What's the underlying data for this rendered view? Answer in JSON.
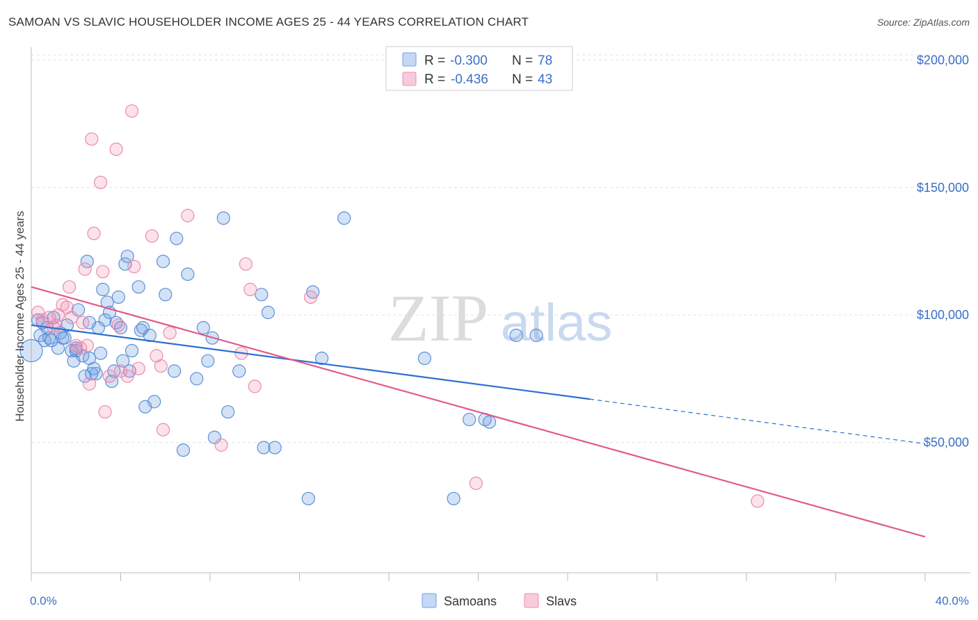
{
  "title": "SAMOAN VS SLAVIC HOUSEHOLDER INCOME AGES 25 - 44 YEARS CORRELATION CHART",
  "source": "Source: ZipAtlas.com",
  "watermark": {
    "zip": "ZIP",
    "atlas": "atlas"
  },
  "colors": {
    "samoans": "#6fa0e0",
    "slavs": "#f08db0",
    "samoans_line": "#2b6fd0",
    "slavs_line": "#e05a8a"
  },
  "stats": [
    {
      "r_label": "R =",
      "r_value": "-0.300",
      "n_label": "N =",
      "n_value": "78"
    },
    {
      "r_label": "R =",
      "r_value": "-0.436",
      "n_label": "N =",
      "n_value": "43"
    }
  ],
  "chart_data": {
    "type": "scatter",
    "title": "SAMOAN VS SLAVIC HOUSEHOLDER INCOME AGES 25 - 44 YEARS CORRELATION CHART",
    "xlabel": "",
    "ylabel": "Householder Income Ages 25 - 44 years",
    "xlim": [
      0,
      40
    ],
    "ylim": [
      0,
      205000
    ],
    "x_tick_labels": [
      "0.0%",
      "40.0%"
    ],
    "y_ticks": [
      50000,
      100000,
      150000,
      200000
    ],
    "y_tick_labels": [
      "$50,000",
      "$100,000",
      "$150,000",
      "$200,000"
    ],
    "grid": true,
    "legend": "bottom",
    "series": [
      {
        "name": "Samoans",
        "trend": {
          "x0": 0,
          "y0": 96000,
          "x1": 25,
          "y1": 67000,
          "dash_to_x": 40,
          "dash_to_y": 49500
        },
        "points": [
          [
            0.0,
            86000
          ],
          [
            0.3,
            98000
          ],
          [
            0.4,
            92000
          ],
          [
            0.6,
            90000
          ],
          [
            0.7,
            95000
          ],
          [
            0.8,
            91000
          ],
          [
            1.0,
            99000
          ],
          [
            1.2,
            87000
          ],
          [
            1.3,
            93000
          ],
          [
            1.4,
            91000
          ],
          [
            1.6,
            96000
          ],
          [
            1.8,
            86000
          ],
          [
            1.9,
            82000
          ],
          [
            2.0,
            86000
          ],
          [
            2.1,
            102000
          ],
          [
            2.3,
            84000
          ],
          [
            2.4,
            76000
          ],
          [
            2.5,
            121000
          ],
          [
            2.6,
            97000
          ],
          [
            2.7,
            77000
          ],
          [
            2.8,
            79000
          ],
          [
            2.9,
            77000
          ],
          [
            3.0,
            95000
          ],
          [
            3.1,
            85000
          ],
          [
            3.2,
            110000
          ],
          [
            3.3,
            98000
          ],
          [
            3.4,
            105000
          ],
          [
            3.5,
            101000
          ],
          [
            3.6,
            74000
          ],
          [
            3.8,
            97000
          ],
          [
            3.9,
            107000
          ],
          [
            4.0,
            95000
          ],
          [
            4.1,
            82000
          ],
          [
            4.2,
            120000
          ],
          [
            4.3,
            123000
          ],
          [
            4.4,
            78000
          ],
          [
            4.5,
            86000
          ],
          [
            4.8,
            111000
          ],
          [
            4.9,
            94000
          ],
          [
            5.0,
            95000
          ],
          [
            5.3,
            92000
          ],
          [
            5.5,
            66000
          ],
          [
            5.9,
            121000
          ],
          [
            6.0,
            108000
          ],
          [
            6.4,
            78000
          ],
          [
            6.5,
            130000
          ],
          [
            6.8,
            47000
          ],
          [
            7.0,
            116000
          ],
          [
            7.4,
            75000
          ],
          [
            7.7,
            95000
          ],
          [
            7.9,
            82000
          ],
          [
            8.1,
            91000
          ],
          [
            8.2,
            52000
          ],
          [
            8.6,
            138000
          ],
          [
            8.8,
            62000
          ],
          [
            9.3,
            78000
          ],
          [
            10.3,
            108000
          ],
          [
            10.4,
            48000
          ],
          [
            10.6,
            101000
          ],
          [
            10.9,
            48000
          ],
          [
            12.4,
            28000
          ],
          [
            12.6,
            109000
          ],
          [
            13.0,
            83000
          ],
          [
            14.0,
            138000
          ],
          [
            17.6,
            83000
          ],
          [
            18.9,
            28000
          ],
          [
            19.6,
            59000
          ],
          [
            20.3,
            59000
          ],
          [
            20.5,
            58000
          ],
          [
            21.7,
            92000
          ],
          [
            22.6,
            92000
          ],
          [
            5.1,
            64000
          ],
          [
            1.5,
            91000
          ],
          [
            2.0,
            87000
          ],
          [
            0.5,
            97000
          ],
          [
            0.9,
            90000
          ],
          [
            3.7,
            78000
          ],
          [
            2.6,
            83000
          ]
        ]
      },
      {
        "name": "Slavs",
        "trend": {
          "x0": 0,
          "y0": 111000,
          "x1": 40,
          "y1": 13000
        },
        "points": [
          [
            0.3,
            101000
          ],
          [
            0.5,
            98000
          ],
          [
            0.8,
            99000
          ],
          [
            1.1,
            96000
          ],
          [
            1.2,
            100000
          ],
          [
            1.4,
            104000
          ],
          [
            1.6,
            103000
          ],
          [
            1.7,
            111000
          ],
          [
            1.8,
            99000
          ],
          [
            2.0,
            88000
          ],
          [
            2.2,
            87000
          ],
          [
            2.4,
            118000
          ],
          [
            2.5,
            88000
          ],
          [
            2.6,
            73000
          ],
          [
            2.7,
            169000
          ],
          [
            2.8,
            132000
          ],
          [
            3.1,
            152000
          ],
          [
            3.2,
            117000
          ],
          [
            3.3,
            62000
          ],
          [
            3.5,
            76000
          ],
          [
            3.8,
            165000
          ],
          [
            3.9,
            96000
          ],
          [
            4.0,
            78000
          ],
          [
            4.3,
            76000
          ],
          [
            4.5,
            180000
          ],
          [
            4.6,
            119000
          ],
          [
            4.8,
            79000
          ],
          [
            5.4,
            131000
          ],
          [
            5.6,
            84000
          ],
          [
            5.8,
            80000
          ],
          [
            5.9,
            55000
          ],
          [
            6.2,
            93000
          ],
          [
            7.0,
            139000
          ],
          [
            8.5,
            49000
          ],
          [
            9.4,
            85000
          ],
          [
            9.6,
            120000
          ],
          [
            9.8,
            110000
          ],
          [
            10.0,
            72000
          ],
          [
            12.5,
            107000
          ],
          [
            19.9,
            34000
          ],
          [
            32.5,
            27000
          ],
          [
            1.0,
            95000
          ],
          [
            2.3,
            97000
          ]
        ]
      }
    ]
  }
}
